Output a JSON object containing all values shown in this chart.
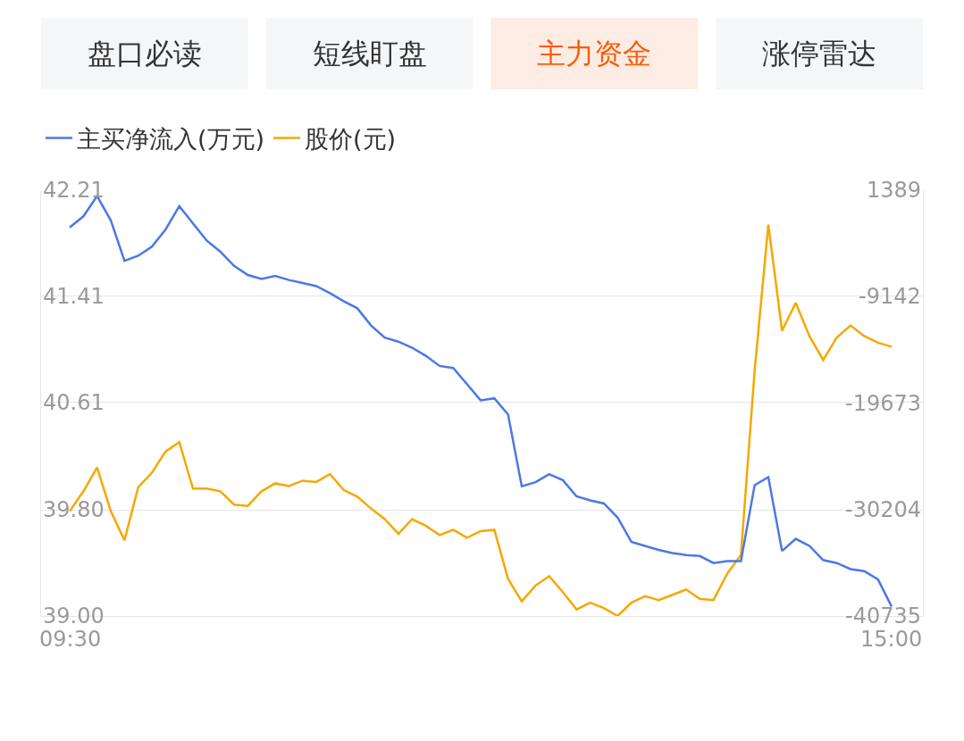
{
  "chart_data": {
    "type": "line",
    "annotations": [
      "盘口必读",
      "短线盯盘",
      "主力资金",
      "涨停雷达"
    ],
    "categories": [
      "09:30",
      null,
      null,
      null,
      null,
      null,
      null,
      null,
      null,
      null,
      null,
      null,
      null,
      null,
      null,
      null,
      null,
      null,
      null,
      null,
      null,
      null,
      null,
      null,
      null,
      null,
      null,
      null,
      null,
      null,
      null,
      null,
      null,
      null,
      null,
      null,
      null,
      null,
      null,
      null,
      null,
      null,
      null,
      null,
      null,
      null,
      null,
      null,
      null,
      null,
      null,
      null,
      null,
      null,
      null,
      null,
      null,
      null,
      null,
      null,
      "15:00"
    ],
    "ylim": [
      39.0,
      42.21
    ],
    "yticks": [
      {
        "value": 39.0,
        "label": "39.00"
      },
      {
        "value": 39.8,
        "label": "39.80"
      },
      40.61,
      41.41,
      42.21
    ],
    "y2lim": [
      -40735,
      1389
    ],
    "y2ticks": [
      -40735,
      -30204,
      -19673,
      -9142,
      1389
    ],
    "grid": "y",
    "legend": "top left",
    "marker": "none",
    "line_style": "solid",
    "series": [
      {
        "name": "主买净流入(万元)",
        "color": "#4a78e8",
        "axis": "y2",
        "values": [
          -2300,
          -1200,
          800,
          -1600,
          -5600,
          -5100,
          -4200,
          -2500,
          -200,
          -1900,
          -3600,
          -4700,
          -6100,
          -7000,
          -7400,
          -7100,
          -7500,
          -7800,
          -8100,
          -8800,
          -9600,
          -10300,
          -12000,
          -13200,
          -13600,
          -14200,
          -15000,
          -16000,
          -16200,
          -17800,
          -19400,
          -19200,
          -20800,
          -27900,
          -27500,
          -26700,
          -27300,
          -28900,
          -29300,
          -29600,
          -31000,
          -33400,
          -33800,
          -34200,
          -34500,
          -34700,
          -34800,
          -35500,
          -35300,
          -35300,
          -27800,
          -27000,
          -34300,
          -33100,
          -33800,
          -35200,
          -35500,
          -36100,
          -36300,
          -37100,
          -39800
        ]
      },
      {
        "name": "股价(元)",
        "color": "#f5a800",
        "values": [
          39.79,
          39.94,
          40.12,
          39.79,
          39.57,
          39.97,
          40.08,
          40.24,
          40.31,
          39.96,
          39.96,
          39.94,
          39.84,
          39.83,
          39.94,
          40.0,
          39.98,
          40.02,
          40.01,
          40.07,
          39.95,
          39.9,
          39.81,
          39.73,
          39.62,
          39.73,
          39.68,
          39.61,
          39.65,
          39.59,
          39.64,
          39.65,
          39.28,
          39.11,
          39.23,
          39.3,
          39.18,
          39.05,
          39.1,
          39.06,
          39.0,
          39.1,
          39.15,
          39.12,
          39.16,
          39.2,
          39.13,
          39.12,
          39.32,
          39.46,
          40.85,
          41.95,
          41.15,
          41.36,
          41.11,
          40.93,
          41.1,
          41.19,
          41.11,
          41.06,
          41.03
        ]
      }
    ]
  }
}
